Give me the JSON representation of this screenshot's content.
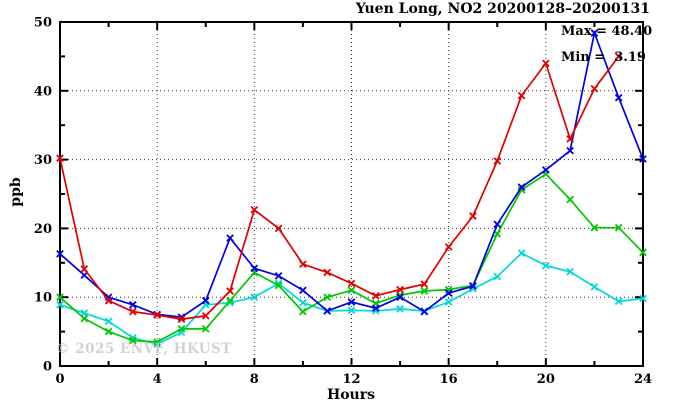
{
  "header": {
    "title": "Yuen Long, NO2 20200128–20200131"
  },
  "annotations": {
    "max_line": "Max = 48.40",
    "min_line": "Min =  3.19"
  },
  "watermark": "© 2025 ENVF, HKUST",
  "axes": {
    "x_label": "Hours",
    "y_label": "ppb"
  },
  "chart_data": {
    "type": "line",
    "title": "Yuen Long, NO2 20200128–20200131",
    "xlabel": "Hours",
    "ylabel": "ppb",
    "xlim": [
      0,
      24
    ],
    "ylim": [
      0,
      50
    ],
    "x_major_ticks": [
      0,
      4,
      8,
      12,
      16,
      20,
      24
    ],
    "x_minor_tick_step": 2,
    "y_major_ticks": [
      0,
      10,
      20,
      30,
      40,
      50
    ],
    "y_minor_tick_step": 5,
    "grid": {
      "style": "dotted",
      "x_lines": [
        4,
        8,
        12,
        16,
        20
      ],
      "y_lines": [
        10,
        20,
        30,
        40
      ]
    },
    "legend": "none",
    "max_annotation": 48.4,
    "min_annotation": 3.19,
    "x": [
      0,
      1,
      2,
      3,
      4,
      5,
      6,
      7,
      8,
      9,
      10,
      11,
      12,
      13,
      14,
      15,
      16,
      17,
      18,
      19,
      20,
      21,
      22,
      23,
      24
    ],
    "series": [
      {
        "name": "cyan-day",
        "color": "#00d9d9",
        "marker": "x",
        "values": [
          8.9,
          7.7,
          6.5,
          4.1,
          3.19,
          4.9,
          8.9,
          9.2,
          10.0,
          12.0,
          9.2,
          8.0,
          8.1,
          8.0,
          8.3,
          8.0,
          9.3,
          11.2,
          13.0,
          16.4,
          14.6,
          13.7,
          11.5,
          9.4,
          9.8
        ]
      },
      {
        "name": "green-day",
        "color": "#00c800",
        "marker": "x",
        "values": [
          10.0,
          6.9,
          5.0,
          3.7,
          3.5,
          5.4,
          5.4,
          9.5,
          13.6,
          11.7,
          7.9,
          10.0,
          11.0,
          9.1,
          10.3,
          10.9,
          11.1,
          11.7,
          19.2,
          25.6,
          27.9,
          24.2,
          20.1,
          20.1,
          16.5
        ]
      },
      {
        "name": "blue-day",
        "color": "#0000e1",
        "marker": "x",
        "values": [
          16.3,
          13.2,
          10.0,
          8.9,
          7.5,
          7.1,
          9.5,
          18.6,
          14.2,
          13.1,
          11.0,
          8.0,
          9.3,
          8.4,
          10.0,
          7.9,
          10.6,
          11.6,
          20.6,
          26.0,
          28.5,
          31.3,
          48.4,
          39.0,
          30.1
        ]
      },
      {
        "name": "red-day",
        "color": "#e10000",
        "marker": "x",
        "values": [
          30.2,
          14.1,
          9.5,
          7.9,
          7.4,
          6.8,
          7.3,
          10.9,
          22.7,
          20.0,
          14.8,
          13.6,
          12.0,
          10.2,
          11.1,
          11.9,
          17.3,
          21.8,
          29.8,
          39.3,
          44.0,
          33.0,
          40.3,
          45.0,
          null
        ]
      }
    ]
  }
}
